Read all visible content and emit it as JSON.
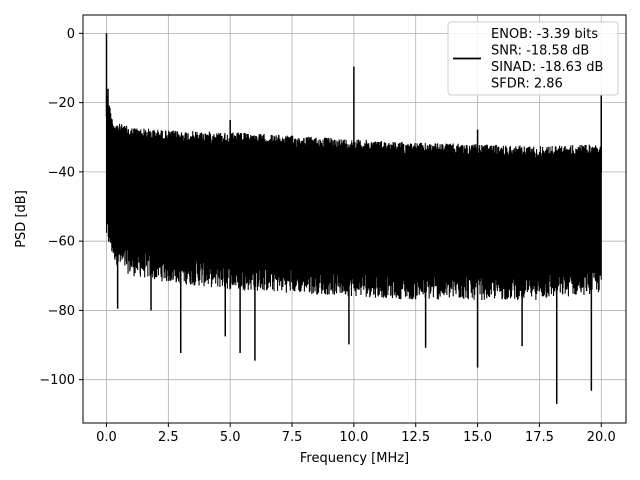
{
  "chart_data": {
    "type": "line",
    "title": "",
    "xlabel": "Frequency [MHz]",
    "ylabel": "PSD [dB]",
    "xlim": [
      -0.95,
      21.0
    ],
    "ylim": [
      -112.5,
      5.3
    ],
    "grid": true,
    "x_ticks": [
      0.0,
      2.5,
      5.0,
      7.5,
      10.0,
      12.5,
      15.0,
      17.5,
      20.0
    ],
    "x_tick_labels": [
      "0.0",
      "2.5",
      "5.0",
      "7.5",
      "10.0",
      "12.5",
      "15.0",
      "17.5",
      "20.0"
    ],
    "y_ticks": [
      0,
      -20,
      -40,
      -60,
      -80,
      -100
    ],
    "y_tick_labels": [
      "0",
      "−20",
      "−40",
      "−60",
      "−80",
      "−100"
    ],
    "legend_position": "top-right",
    "legend_lines": [
      "ENOB: -3.39 bits",
      "SNR: -18.58 dB",
      "SINAD: -18.63 dB",
      "SFDR: 2.86"
    ],
    "series": [
      {
        "color": "#000000",
        "noise_envelope": {
          "x": [
            0.0,
            0.25,
            0.5,
            1.0,
            2.5,
            5.0,
            7.5,
            10.0,
            12.5,
            15.0,
            17.5,
            20.0
          ],
          "upper": [
            -16,
            -25,
            -26,
            -27,
            -28,
            -28.5,
            -29.5,
            -30.5,
            -31.5,
            -32,
            -32.5,
            -32
          ],
          "lower": [
            -60,
            -65,
            -68,
            -70,
            -72,
            -74,
            -75,
            -76,
            -77,
            -77,
            -77,
            -75
          ]
        },
        "spikes": [
          {
            "x": 0.0,
            "y": 0.0
          },
          {
            "x": 0.06,
            "y": -16.0
          },
          {
            "x": 10.0,
            "y": -9.6
          },
          {
            "x": 20.0,
            "y": -17.8
          },
          {
            "x": 5.0,
            "y": -25.0
          },
          {
            "x": 15.0,
            "y": -27.8
          }
        ],
        "dips": [
          {
            "x": 0.45,
            "y": -79.5
          },
          {
            "x": 1.8,
            "y": -80.0
          },
          {
            "x": 3.0,
            "y": -92.3
          },
          {
            "x": 4.8,
            "y": -87.5
          },
          {
            "x": 5.4,
            "y": -92.3
          },
          {
            "x": 6.0,
            "y": -94.5
          },
          {
            "x": 9.8,
            "y": -89.8
          },
          {
            "x": 12.9,
            "y": -90.8
          },
          {
            "x": 15.0,
            "y": -96.5
          },
          {
            "x": 16.8,
            "y": -90.3
          },
          {
            "x": 18.2,
            "y": -107.0
          },
          {
            "x": 19.6,
            "y": -103.2
          }
        ]
      }
    ]
  }
}
